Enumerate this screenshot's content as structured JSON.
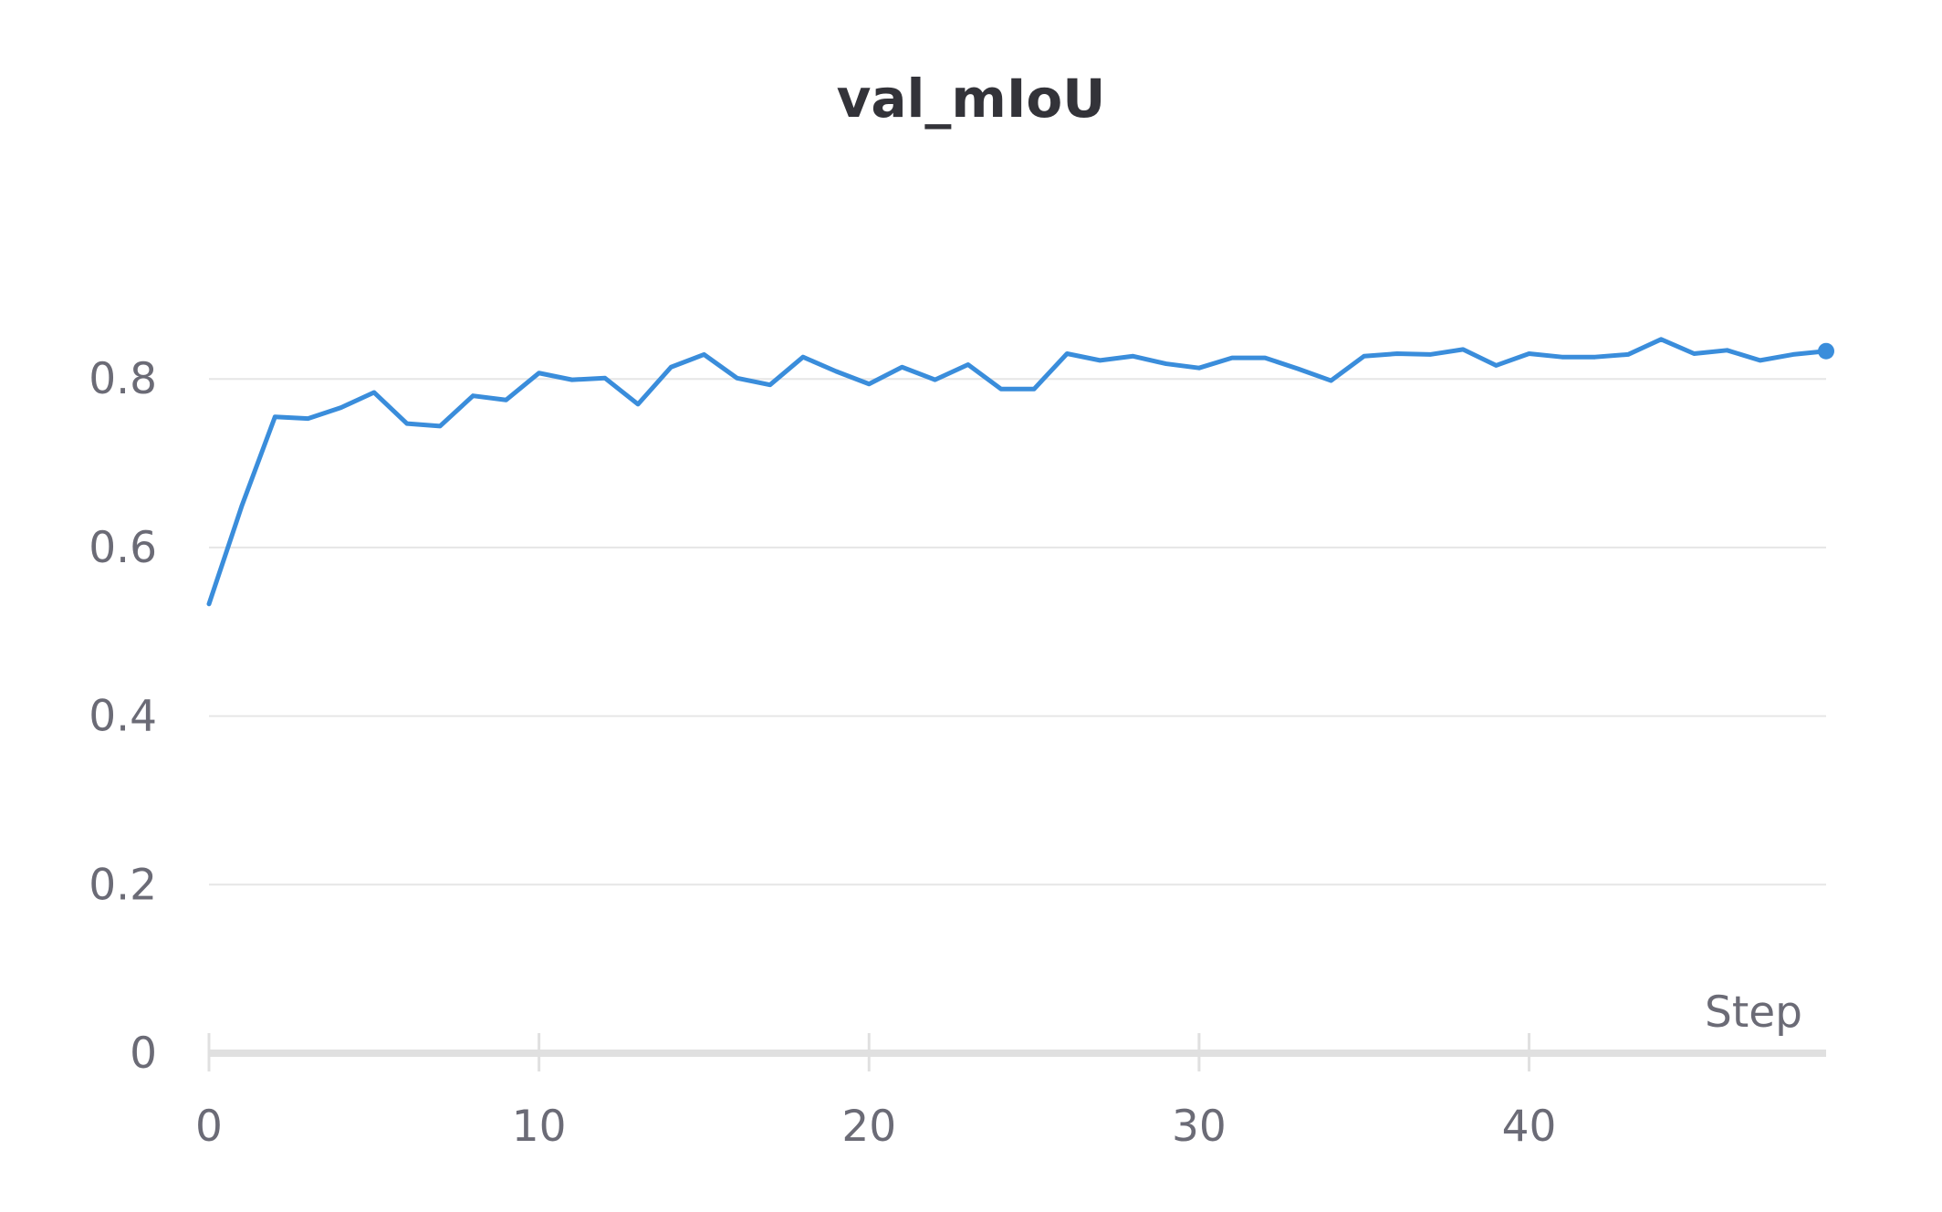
{
  "chart_data": {
    "type": "line",
    "title": "val_mIoU",
    "xlabel": "Step",
    "ylabel": "",
    "xlim": [
      0,
      49
    ],
    "ylim": [
      0,
      0.9
    ],
    "x_ticks": [
      0,
      10,
      20,
      30,
      40
    ],
    "y_ticks": [
      0,
      0.2,
      0.4,
      0.6,
      0.8
    ],
    "x_tick_labels": [
      "0",
      "10",
      "20",
      "30",
      "40"
    ],
    "y_tick_labels": [
      "0",
      "0.2",
      "0.4",
      "0.6",
      "0.8"
    ],
    "grid": true,
    "legend": "none",
    "series": [
      {
        "color": "#3a8ddb",
        "x": [
          0,
          1,
          2,
          3,
          4,
          5,
          6,
          7,
          8,
          9,
          10,
          11,
          12,
          13,
          14,
          15,
          16,
          17,
          18,
          19,
          20,
          21,
          22,
          23,
          24,
          25,
          26,
          27,
          28,
          29,
          30,
          31,
          32,
          33,
          34,
          35,
          36,
          37,
          38,
          39,
          40,
          41,
          42,
          43,
          44,
          45,
          46,
          47,
          48,
          49
        ],
        "values": [
          0.533,
          0.65,
          0.755,
          0.753,
          0.766,
          0.784,
          0.747,
          0.744,
          0.78,
          0.775,
          0.807,
          0.799,
          0.801,
          0.77,
          0.814,
          0.829,
          0.801,
          0.793,
          0.826,
          0.809,
          0.794,
          0.814,
          0.799,
          0.817,
          0.788,
          0.788,
          0.83,
          0.822,
          0.827,
          0.818,
          0.813,
          0.825,
          0.825,
          0.812,
          0.798,
          0.827,
          0.83,
          0.829,
          0.835,
          0.816,
          0.83,
          0.826,
          0.826,
          0.829,
          0.847,
          0.83,
          0.834,
          0.822,
          0.829,
          0.833
        ]
      }
    ]
  }
}
